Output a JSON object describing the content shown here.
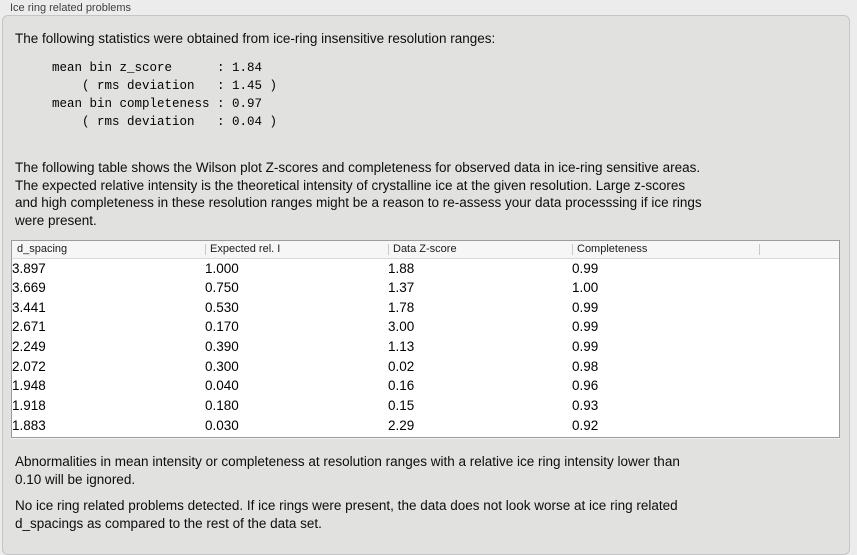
{
  "panel": {
    "title": "Ice ring related problems",
    "intro": "The following statistics were obtained from ice-ring insensitive resolution ranges:",
    "stats_block": [
      "mean bin z_score      : 1.84",
      "    ( rms deviation   : 1.45 )",
      "mean bin completeness : 0.97",
      "    ( rms deviation   : 0.04 )"
    ],
    "stats": {
      "mean_bin_z_score": "1.84",
      "z_score_rms_deviation": "1.45",
      "mean_bin_completeness": "0.97",
      "completeness_rms_deviation": "0.04"
    },
    "table_description": [
      "The following table shows the Wilson plot Z-scores and completeness for observed data in ice-ring sensitive areas.",
      "The expected relative intensity is the theoretical intensity of crystalline ice at the given resolution. Large z-scores",
      "and high completeness in these resolution ranges might be a reason to re-assess your data processsing if ice rings",
      "were present."
    ],
    "ignore_note": [
      "Abnormalities in mean intensity or completeness at resolution ranges with a relative ice ring intensity lower than",
      "0.10 will be ignored."
    ],
    "conclusion": [
      "No ice ring related problems detected. If ice rings were present, the data does not look worse at ice ring related",
      "d_spacings as compared to the rest of the data set."
    ]
  },
  "table": {
    "columns": [
      "d_spacing",
      "Expected rel. I",
      "Data Z-score",
      "Completeness",
      ""
    ],
    "rows": [
      [
        "3.897",
        "1.000",
        "1.88",
        "0.99"
      ],
      [
        "3.669",
        "0.750",
        "1.37",
        "1.00"
      ],
      [
        "3.441",
        "0.530",
        "1.78",
        "0.99"
      ],
      [
        "2.671",
        "0.170",
        "3.00",
        "0.99"
      ],
      [
        "2.249",
        "0.390",
        "1.13",
        "0.99"
      ],
      [
        "2.072",
        "0.300",
        "0.02",
        "0.98"
      ],
      [
        "1.948",
        "0.040",
        "0.16",
        "0.96"
      ],
      [
        "1.918",
        "0.180",
        "0.15",
        "0.93"
      ],
      [
        "1.883",
        "0.030",
        "2.29",
        "0.92"
      ]
    ]
  },
  "colors": {
    "outer_background": "#ececec",
    "panel_background": "#e1e1e0",
    "panel_border": "#c5c5c5",
    "table_border": "#9c9c9c",
    "table_header_background": "#f6f6f6",
    "text": "#0d0d0d"
  }
}
